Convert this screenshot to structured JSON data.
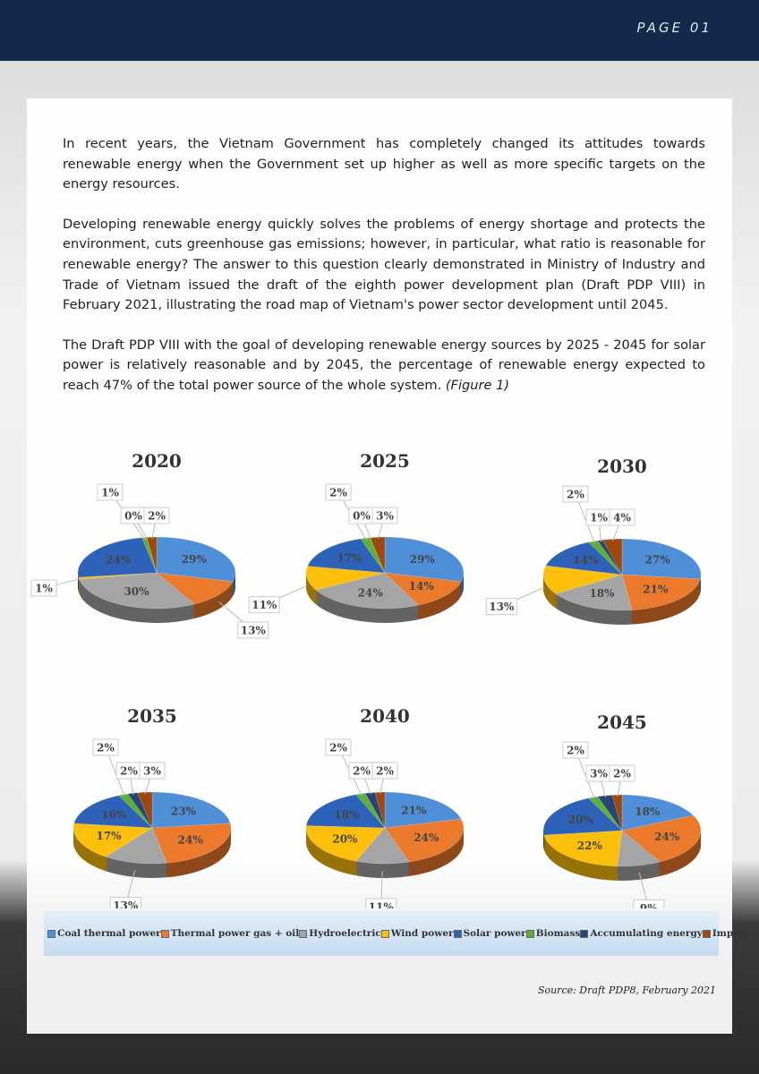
{
  "header": {
    "page": "PAGE 01"
  },
  "paragraphs": [
    "In recent years, the Vietnam Government has completely changed its attitudes towards renewable energy when the Government set up higher as well as more specific targets on the energy resources.",
    "Developing renewable energy quickly solves the problems of energy shortage and protects the environment, cuts greenhouse gas emissions; however, in particular, what ratio is reasonable for renewable energy? The answer to this question clearly demonstrated in Ministry of Industry and Trade of Vietnam issued the draft of the eighth power development plan (Draft PDP VIII) in February 2021, illustrating the road map of Vietnam's power sector development until 2045.",
    "The Draft PDP VIII with the goal of developing renewable energy sources by 2025 - 2045 for solar power is relatively reasonable and by 2045, the percentage of renewable energy expected to reach 47% of the total power source of the whole system."
  ],
  "figure_ref": "(Figure 1)",
  "categories": [
    "Coal thermal power",
    "Thermal power gas + oil",
    "Hydroelectric",
    "Wind power",
    "Solar power",
    "Biomass",
    "Accumulating energy",
    "Import"
  ],
  "colors": [
    "#4f8fd8",
    "#ec7a2c",
    "#a5a5a5",
    "#fcbf0c",
    "#2e62b8",
    "#5fae3a",
    "#264478",
    "#9e480e"
  ],
  "chart_data": [
    {
      "type": "pie",
      "title": "2020",
      "values": [
        29,
        13,
        30,
        1,
        24,
        1,
        0,
        2
      ],
      "value_labels": [
        "29%",
        "13%",
        "30%",
        "1%",
        "24%",
        "1%",
        "0%",
        "2%"
      ]
    },
    {
      "type": "pie",
      "title": "2025",
      "values": [
        29,
        14,
        24,
        11,
        17,
        2,
        0,
        3
      ],
      "value_labels": [
        "29%",
        "14%",
        "24%",
        "11%",
        "17%",
        "2%",
        "0%",
        "3%"
      ]
    },
    {
      "type": "pie",
      "title": "2030",
      "values": [
        27,
        21,
        18,
        13,
        14,
        2,
        1,
        4
      ],
      "value_labels": [
        "27%",
        "21%",
        "18%",
        "13%",
        "14%",
        "2%",
        "1%",
        "4%"
      ]
    },
    {
      "type": "pie",
      "title": "2035",
      "values": [
        23,
        24,
        13,
        17,
        16,
        2,
        2,
        3
      ],
      "value_labels": [
        "23%",
        "24%",
        "13%",
        "17%",
        "16%",
        "2%",
        "2%",
        "3%"
      ]
    },
    {
      "type": "pie",
      "title": "2040",
      "values": [
        21,
        24,
        11,
        20,
        18,
        2,
        2,
        2
      ],
      "value_labels": [
        "21%",
        "24%",
        "11%",
        "20%",
        "18%",
        "2%",
        "2%",
        "2%"
      ]
    },
    {
      "type": "pie",
      "title": "2045",
      "values": [
        18,
        24,
        9,
        22,
        20,
        2,
        3,
        2
      ],
      "value_labels": [
        "18%",
        "24%",
        "9%",
        "22%",
        "20%",
        "2%",
        "3%",
        "2%"
      ]
    }
  ],
  "source": "Source: Draft PDP8, February 2021"
}
